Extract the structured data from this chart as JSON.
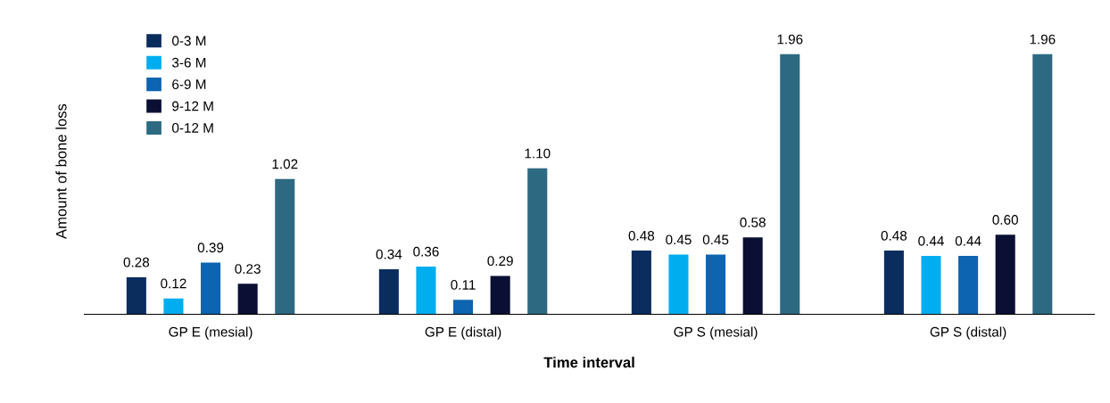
{
  "chart_data": {
    "type": "bar",
    "xlabel": "Time interval",
    "ylabel": "Amount of bone loss",
    "categories": [
      "GP E (mesial)",
      "GP E (distal)",
      "GP S (mesial)",
      "GP S (distal)"
    ],
    "series": [
      {
        "name": "0-3 M",
        "color": "#0b2d5e",
        "values": [
          0.28,
          0.34,
          0.48,
          0.48
        ],
        "value_labels": [
          "0.28",
          "0.34",
          "0.48",
          "0.48"
        ]
      },
      {
        "name": "3-6 M",
        "color": "#00aeef",
        "values": [
          0.12,
          0.36,
          0.45,
          0.44
        ],
        "value_labels": [
          "0.12",
          "0.36",
          "0.45",
          "0.44"
        ]
      },
      {
        "name": "6-9 M",
        "color": "#0d64b0",
        "values": [
          0.39,
          0.11,
          0.45,
          0.44
        ],
        "value_labels": [
          "0.39",
          "0.11",
          "0.45",
          "0.44"
        ]
      },
      {
        "name": "9-12 M",
        "color": "#0a0f33",
        "values": [
          0.23,
          0.29,
          0.58,
          0.6
        ],
        "value_labels": [
          "0.23",
          "0.29",
          "0.58",
          "0.60"
        ]
      },
      {
        "name": "0-12 M",
        "color": "#2d6a82",
        "values": [
          1.02,
          1.1,
          1.96,
          1.96
        ],
        "value_labels": [
          "1.02",
          "1.10",
          "1.96",
          "1.96"
        ]
      }
    ],
    "legend": "top left",
    "grid": false
  }
}
